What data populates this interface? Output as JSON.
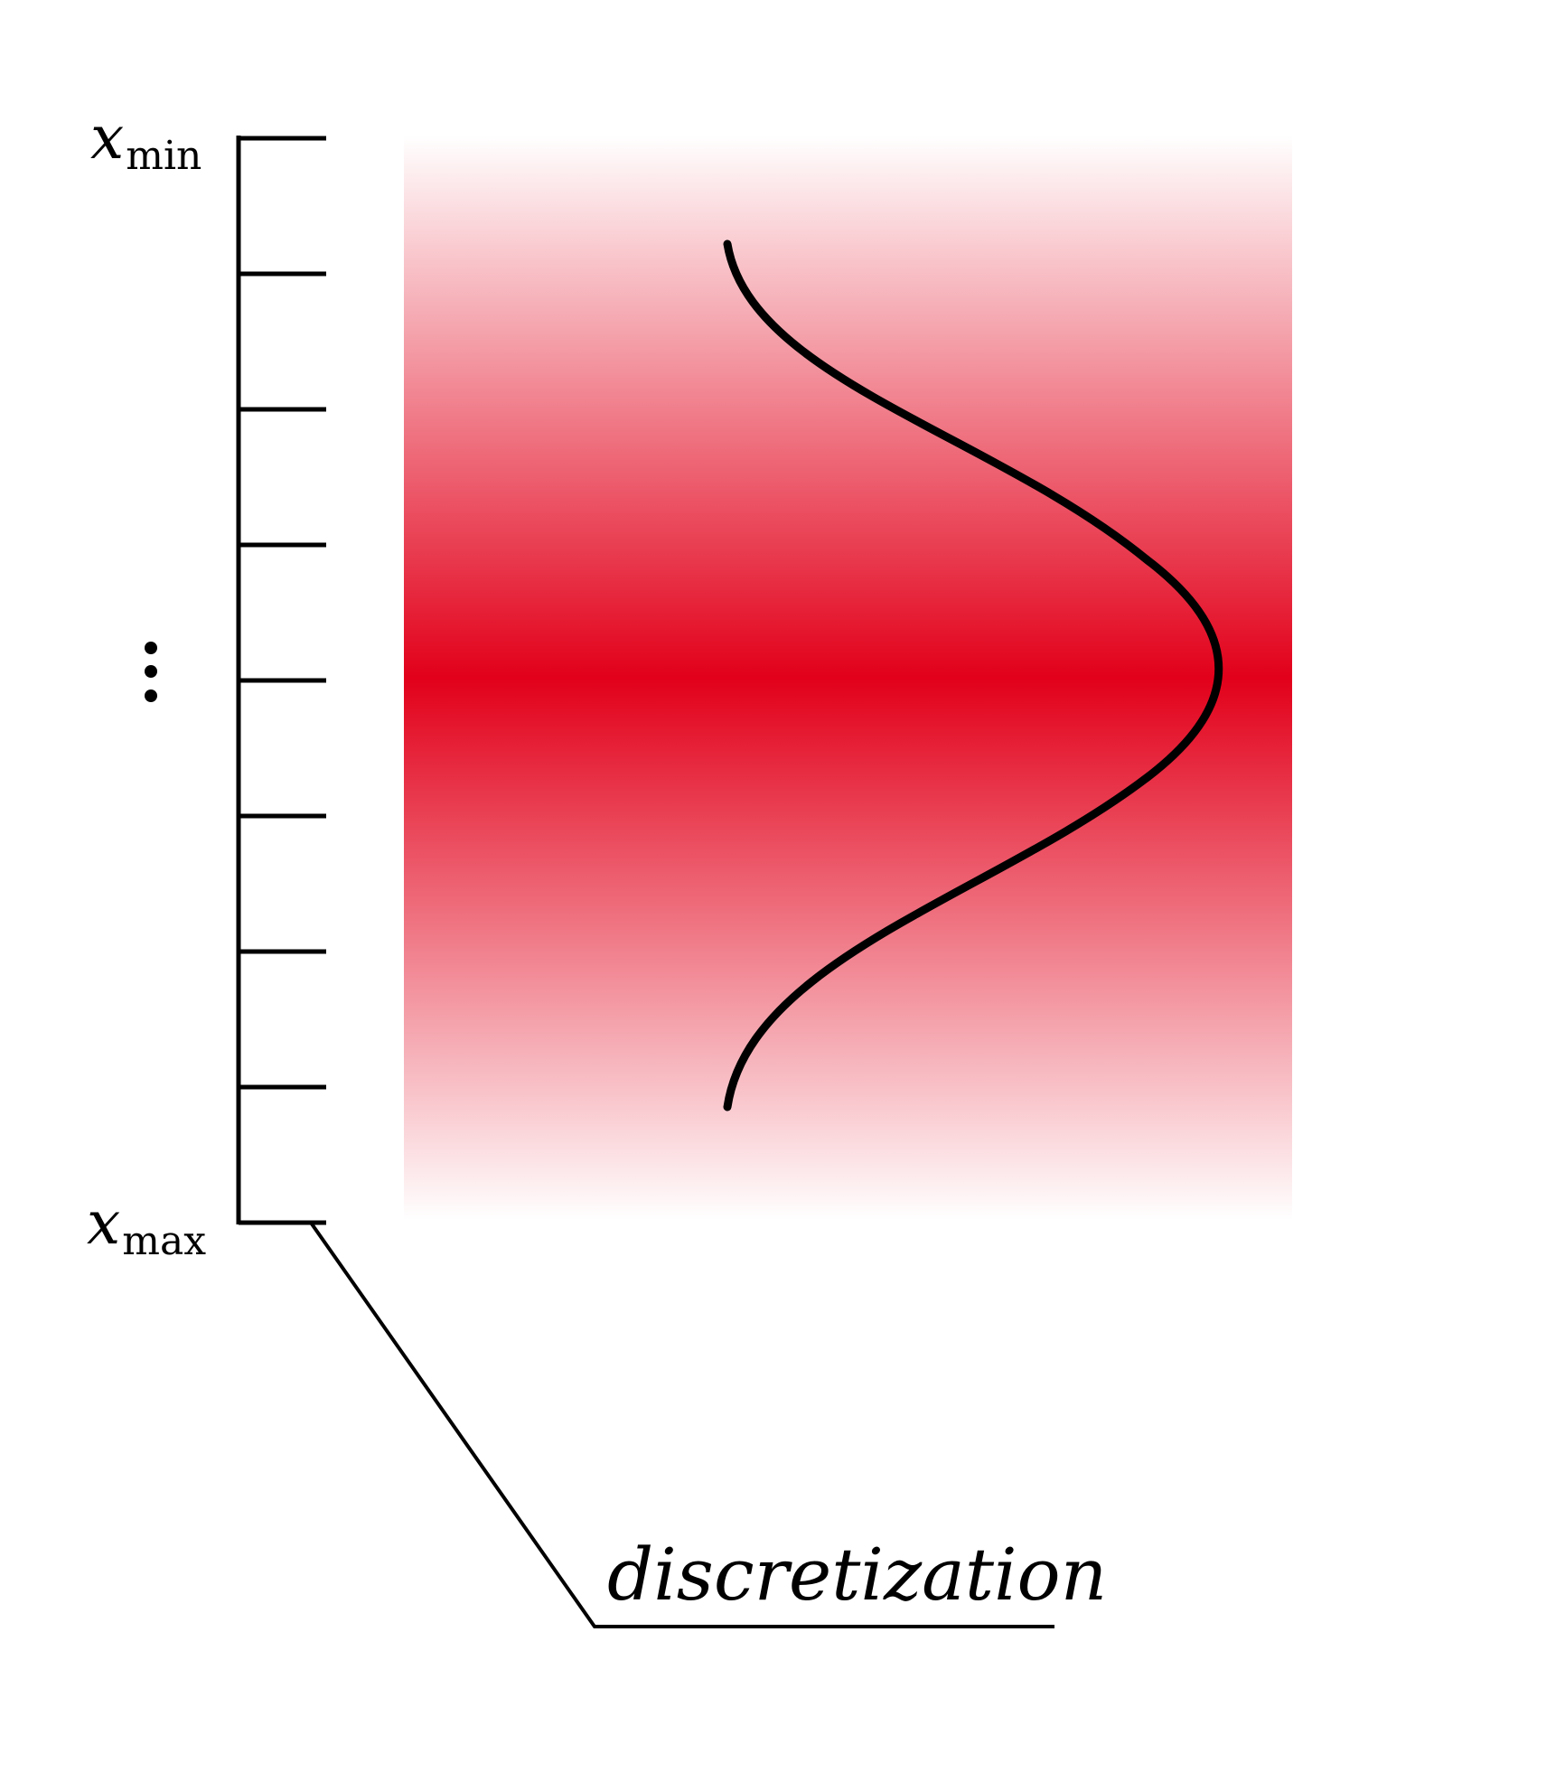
{
  "labels": {
    "x_min_var": "x",
    "x_min_sub": "min",
    "x_max_var": "x",
    "x_max_sub": "max",
    "caption": "discretization"
  },
  "axis": {
    "tick_count": 9,
    "ellipsis": "vertical-dots"
  },
  "colors": {
    "gradient_peak": "#e2001a",
    "line": "#000000",
    "background": "#ffffff"
  }
}
